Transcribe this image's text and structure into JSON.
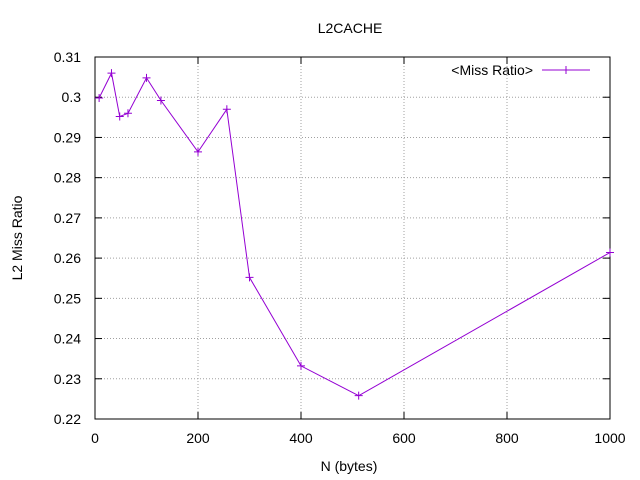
{
  "chart_data": {
    "type": "line",
    "title": "L2CACHE",
    "xlabel": "N (bytes)",
    "ylabel": "L2 Miss Ratio",
    "xlim": [
      0,
      1000
    ],
    "ylim": [
      0.22,
      0.31
    ],
    "xticks": [
      0,
      200,
      400,
      600,
      800,
      1000
    ],
    "yticks": [
      0.22,
      0.23,
      0.24,
      0.25,
      0.26,
      0.27,
      0.28,
      0.29,
      0.3,
      0.31
    ],
    "xtick_labels": [
      "0",
      "200",
      "400",
      "600",
      "800",
      "1000"
    ],
    "ytick_labels": [
      "0.22",
      "0.23",
      "0.24",
      "0.25",
      "0.26",
      "0.27",
      "0.28",
      "0.29",
      "0.3",
      "0.31"
    ],
    "grid": true,
    "legend_position": "top-right",
    "series": [
      {
        "name": "<Miss Ratio>",
        "color": "#9400d3",
        "marker": "plus",
        "x": [
          8,
          32,
          48,
          64,
          100,
          128,
          200,
          256,
          300,
          400,
          512,
          1000
        ],
        "y": [
          0.2998,
          0.306,
          0.2952,
          0.296,
          0.3048,
          0.2992,
          0.2864,
          0.297,
          0.2552,
          0.2332,
          0.2258,
          0.2614
        ]
      }
    ]
  }
}
